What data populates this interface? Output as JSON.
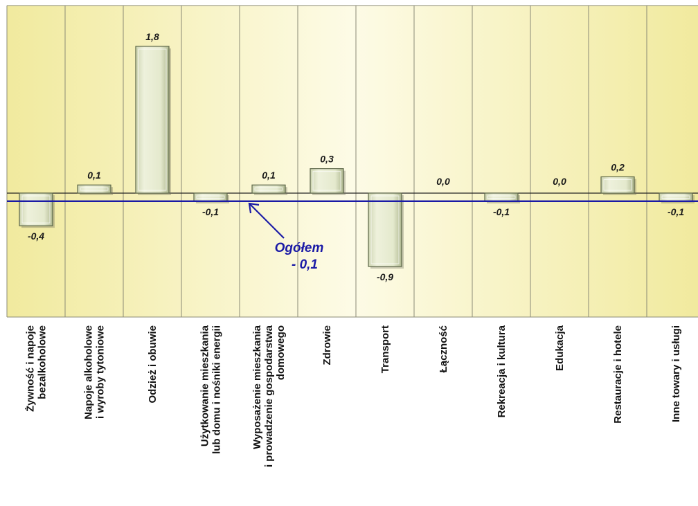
{
  "chart_data": {
    "type": "bar",
    "categories": [
      [
        "Żywność i napoje",
        "bezalkoholowe"
      ],
      [
        "Napoje alkoholowe",
        "i wyroby tytoniowe"
      ],
      [
        "Odzież i obuwie"
      ],
      [
        "Użytkowanie mieszkania",
        "lub domu i nośniki energii"
      ],
      [
        "Wyposażenie mieszkania",
        "i prowadzenie gospodarstwa",
        "domowego"
      ],
      [
        "Zdrowie"
      ],
      [
        "Transport"
      ],
      [
        "Łączność"
      ],
      [
        "Rekreacja i kultura"
      ],
      [
        "Edukacja"
      ],
      [
        "Restauracje i hotele"
      ],
      [
        "Inne towary i usługi"
      ]
    ],
    "values": [
      -0.4,
      0.1,
      1.8,
      -0.1,
      0.1,
      0.3,
      -0.9,
      0.0,
      -0.1,
      0.0,
      0.2,
      -0.1
    ],
    "value_labels": [
      "-0,4",
      "0,1",
      "1,8",
      "-0,1",
      "0,1",
      "0,3",
      "-0,9",
      "0,0",
      "-0,1",
      "0,0",
      "0,2",
      "-0,1"
    ],
    "ylim": [
      -1.0,
      1.65
    ],
    "reference_line": {
      "value": -0.1,
      "label_lines": [
        "Ogółem",
        "- 0,1"
      ],
      "color": "#1a1aa6"
    },
    "colors": {
      "plot_bg_center": "#fdfbe6",
      "plot_bg_edge": "#f1ea9e",
      "bar_fill": "#e3e8cc",
      "bar_edge": "#5c6648",
      "grid": "#8a8a76"
    },
    "title": "",
    "xlabel": "",
    "ylabel": ""
  }
}
